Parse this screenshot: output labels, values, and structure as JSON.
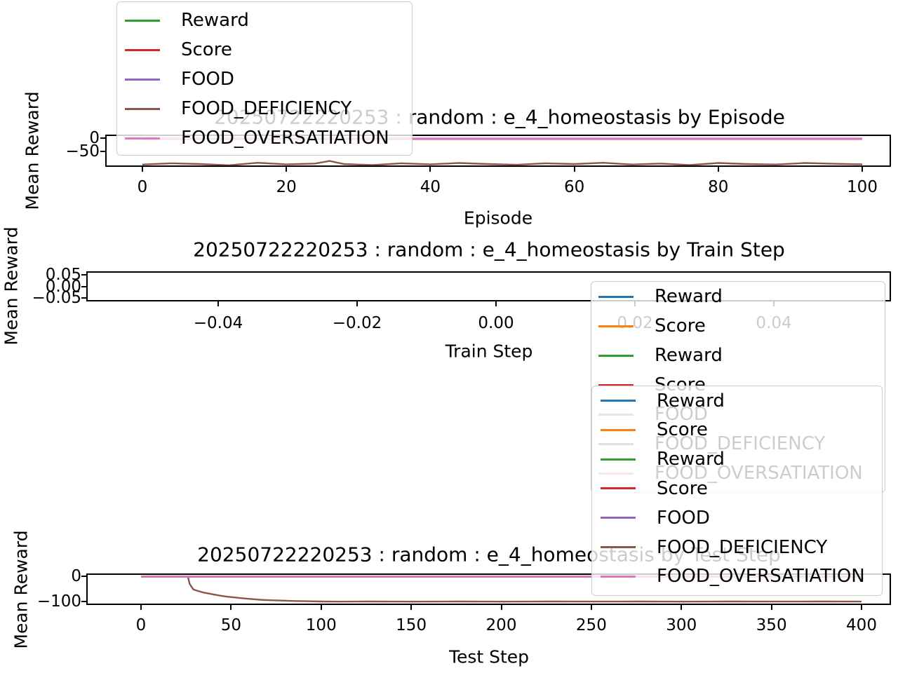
{
  "colors": {
    "background": "#ffffff",
    "legend_border": "#cccccc",
    "axis": "#000000",
    "blue": "#1f77b4",
    "orange": "#ff7f0e",
    "green": "#2ca02c",
    "red": "#d62728",
    "purple": "#9467bd",
    "brown": "#8c564b",
    "pink": "#e377c2"
  },
  "chart_data": [
    {
      "type": "line",
      "title": "20250722220253 : random : e_4_homeostasis by Episode",
      "xlabel": "Episode",
      "ylabel": "Mean Reward",
      "xlim": [
        -5,
        104
      ],
      "ylim": [
        -112,
        13
      ],
      "grid": false,
      "xticks": [
        0,
        20,
        40,
        60,
        80,
        100
      ],
      "xtick_labels": [
        "0",
        "20",
        "40",
        "60",
        "80",
        "100"
      ],
      "yticks": [
        0,
        -50
      ],
      "ytick_labels": [
        "0",
        "−50"
      ],
      "legend_position": "upper left, overlapping top of figure",
      "legend": [
        {
          "label": "Reward",
          "color": "#2ca02c"
        },
        {
          "label": "Score",
          "color": "#d62728"
        },
        {
          "label": "FOOD",
          "color": "#9467bd"
        },
        {
          "label": "FOOD_DEFICIENCY",
          "color": "#8c564b"
        },
        {
          "label": "FOOD_OVERSATIATION",
          "color": "#e377c2"
        }
      ],
      "series": [
        {
          "name": "Reward",
          "color": "#2ca02c",
          "x": [
            0,
            100
          ],
          "y": [
            -3.0,
            -3.0
          ]
        },
        {
          "name": "Score",
          "color": "#d62728",
          "x": [
            0,
            100
          ],
          "y": [
            -3.3,
            -3.3
          ]
        },
        {
          "name": "FOOD",
          "color": "#9467bd",
          "x": [
            0,
            100
          ],
          "y": [
            -2.4,
            -2.4
          ]
        },
        {
          "name": "FOOD_DEFICIENCY",
          "color": "#8c564b",
          "x": [
            0,
            4,
            8,
            12,
            16,
            20,
            24,
            26,
            28,
            32,
            36,
            40,
            44,
            48,
            52,
            56,
            60,
            64,
            68,
            72,
            76,
            80,
            84,
            88,
            92,
            96,
            100
          ],
          "y": [
            -102,
            -97,
            -100,
            -105,
            -95,
            -101,
            -98,
            -88,
            -100,
            -104,
            -97,
            -101,
            -96,
            -100,
            -103,
            -97,
            -100,
            -95,
            -102,
            -98,
            -104,
            -96,
            -100,
            -102,
            -96,
            -99,
            -101
          ]
        },
        {
          "name": "FOOD_OVERSATIATION",
          "color": "#e377c2",
          "x": [
            0,
            100
          ],
          "y": [
            -1.3,
            -1.3
          ]
        }
      ]
    },
    {
      "type": "line",
      "title": "20250722220253 : random : e_4_homeostasis by Train Step",
      "xlabel": "Train Step",
      "ylabel": "Mean Reward",
      "xlim": [
        -0.059,
        0.057
      ],
      "ylim": [
        -0.066,
        0.064
      ],
      "grid": false,
      "xticks": [
        -0.04,
        -0.02,
        0.0,
        0.02,
        0.04
      ],
      "xtick_labels": [
        "−0.04",
        "−0.02",
        "0.00",
        "0.02",
        "0.04"
      ],
      "yticks": [
        0.05,
        0.0,
        -0.05
      ],
      "ytick_labels": [
        "0.05",
        "0.00",
        "−0.05"
      ],
      "legend_position": "right, overlapping plot and area below",
      "legend": [
        {
          "label": "Reward",
          "color": "#1f77b4"
        },
        {
          "label": "Score",
          "color": "#ff7f0e"
        },
        {
          "label": "Reward",
          "color": "#2ca02c"
        },
        {
          "label": "Score",
          "color": "#d62728"
        },
        {
          "label": "FOOD",
          "color": "#9467bd"
        },
        {
          "label": "FOOD_DEFICIENCY",
          "color": "#8c564b"
        },
        {
          "label": "FOOD_OVERSATIATION",
          "color": "#e377c2"
        }
      ],
      "series": []
    },
    {
      "type": "line",
      "title": "20250722220253 : random : e_4_homeostasis by Test Step",
      "xlabel": "Test Step",
      "ylabel": "Mean Reward",
      "xlim": [
        -30,
        417
      ],
      "ylim": [
        -114,
        11
      ],
      "grid": false,
      "xticks": [
        0,
        50,
        100,
        150,
        200,
        250,
        300,
        350,
        400
      ],
      "xtick_labels": [
        "0",
        "50",
        "100",
        "150",
        "200",
        "250",
        "300",
        "350",
        "400"
      ],
      "yticks": [
        0,
        -100
      ],
      "ytick_labels": [
        "0",
        "−100"
      ],
      "legend_position": "upper right, overlapping title and plot",
      "legend": [
        {
          "label": "Reward",
          "color": "#1f77b4"
        },
        {
          "label": "Score",
          "color": "#ff7f0e"
        },
        {
          "label": "Reward",
          "color": "#2ca02c"
        },
        {
          "label": "Score",
          "color": "#d62728"
        },
        {
          "label": "FOOD",
          "color": "#9467bd"
        },
        {
          "label": "FOOD_DEFICIENCY",
          "color": "#8c564b"
        },
        {
          "label": "FOOD_OVERSATIATION",
          "color": "#e377c2"
        }
      ],
      "series": [
        {
          "name": "Reward",
          "color": "#1f77b4",
          "x": [
            0,
            400
          ],
          "y": [
            -0.8,
            -0.8
          ]
        },
        {
          "name": "Score",
          "color": "#ff7f0e",
          "x": [
            0,
            400
          ],
          "y": [
            -1.0,
            -1.0
          ]
        },
        {
          "name": "Reward",
          "color": "#2ca02c",
          "x": [
            0,
            400
          ],
          "y": [
            -2.0,
            -2.0
          ]
        },
        {
          "name": "Score",
          "color": "#d62728",
          "x": [
            0,
            400
          ],
          "y": [
            -2.3,
            -2.3
          ]
        },
        {
          "name": "FOOD",
          "color": "#9467bd",
          "x": [
            0,
            400
          ],
          "y": [
            -1.3,
            -1.3
          ]
        },
        {
          "name": "FOOD_DEFICIENCY",
          "color": "#8c564b",
          "x": [
            0,
            26,
            27,
            29,
            31,
            33,
            35,
            38,
            41,
            44,
            48,
            52,
            56,
            61,
            66,
            72,
            78,
            85,
            92,
            100,
            110,
            125,
            150,
            175,
            200,
            225,
            250,
            275,
            300,
            325,
            350,
            375,
            400
          ],
          "y": [
            -1,
            -1,
            -30,
            -52,
            -57,
            -61,
            -65,
            -69,
            -73,
            -77,
            -81,
            -84,
            -87,
            -90,
            -93,
            -95,
            -96.5,
            -98,
            -99,
            -100,
            -100.5,
            -100,
            -100.5,
            -100,
            -100.5,
            -100,
            -100.3,
            -100,
            -100.5,
            -100,
            -100.3,
            -100,
            -100.2
          ]
        },
        {
          "name": "FOOD_OVERSATIATION",
          "color": "#e377c2",
          "x": [
            0,
            400
          ],
          "y": [
            -1.4,
            -1.4
          ]
        }
      ]
    }
  ]
}
